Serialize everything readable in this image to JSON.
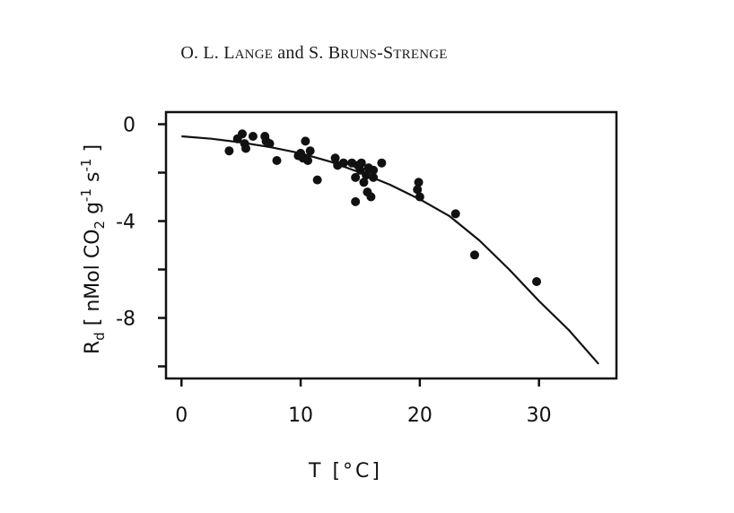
{
  "header": {
    "author_1_initials": "O. L. ",
    "author_1_cap": "L",
    "author_1_rest": "ange",
    "joiner": " and S. ",
    "author_2_cap1": "B",
    "author_2_rest1": "runs",
    "author_2_dash": "-",
    "author_2_cap2": "S",
    "author_2_rest2": "trenge"
  },
  "chart_data": {
    "type": "scatter",
    "xlabel": "T [°C]",
    "ylabel": "R_d [nMol CO2 g-1 s-1]",
    "ylabel_parts": {
      "R": "R",
      "d": "d",
      "mid": " [ nMol CO",
      "two": "2",
      "g": " g",
      "neg1a": "-1",
      "s": " s",
      "neg1b": "-1",
      "end": " ]"
    },
    "xlim": [
      -1.3,
      36.5
    ],
    "ylim": [
      -10.5,
      0.5
    ],
    "x_ticks": [
      0,
      10,
      20,
      30
    ],
    "y_ticks": [
      0,
      -2,
      -4,
      -6,
      -8,
      -10
    ],
    "y_tick_labels": [
      {
        "value": 0,
        "text": "0"
      },
      {
        "value": -4,
        "text": "-4"
      },
      {
        "value": -8,
        "text": "-8"
      }
    ],
    "series": [
      {
        "points": [
          [
            4.0,
            -1.1
          ],
          [
            4.7,
            -0.6
          ],
          [
            5.1,
            -0.4
          ],
          [
            5.3,
            -0.8
          ],
          [
            5.4,
            -1.0
          ],
          [
            6.0,
            -0.5
          ],
          [
            7.0,
            -0.5
          ],
          [
            7.1,
            -0.7
          ],
          [
            7.4,
            -0.8
          ],
          [
            8.0,
            -1.5
          ],
          [
            9.8,
            -1.3
          ],
          [
            10.0,
            -1.2
          ],
          [
            10.2,
            -1.4
          ],
          [
            10.4,
            -0.7
          ],
          [
            10.6,
            -1.5
          ],
          [
            10.8,
            -1.1
          ],
          [
            11.4,
            -2.3
          ],
          [
            12.9,
            -1.4
          ],
          [
            13.1,
            -1.7
          ],
          [
            13.6,
            -1.6
          ],
          [
            14.3,
            -1.6
          ],
          [
            14.6,
            -2.2
          ],
          [
            14.6,
            -3.2
          ],
          [
            14.8,
            -1.7
          ],
          [
            15.0,
            -1.9
          ],
          [
            15.1,
            -1.6
          ],
          [
            15.3,
            -2.4
          ],
          [
            15.5,
            -2.1
          ],
          [
            15.6,
            -2.8
          ],
          [
            15.7,
            -1.8
          ],
          [
            15.9,
            -3.0
          ],
          [
            16.1,
            -2.2
          ],
          [
            16.1,
            -1.9
          ],
          [
            16.8,
            -1.6
          ],
          [
            19.9,
            -2.4
          ],
          [
            19.8,
            -2.7
          ],
          [
            20.0,
            -3.0
          ],
          [
            23.0,
            -3.7
          ],
          [
            24.6,
            -5.4
          ],
          [
            29.8,
            -6.5
          ]
        ]
      },
      {
        "fit_curve": {
          "x": [
            0,
            2.5,
            5,
            7.5,
            10,
            12.5,
            15,
            17.5,
            20,
            22.5,
            25,
            27.5,
            30,
            32.5,
            35
          ],
          "y": [
            -0.5,
            -0.6,
            -0.75,
            -0.95,
            -1.2,
            -1.55,
            -2.0,
            -2.5,
            -3.1,
            -3.8,
            -4.8,
            -6.0,
            -7.3,
            -8.5,
            -9.9
          ]
        }
      }
    ],
    "colors": {
      "ink": "#111111"
    }
  }
}
